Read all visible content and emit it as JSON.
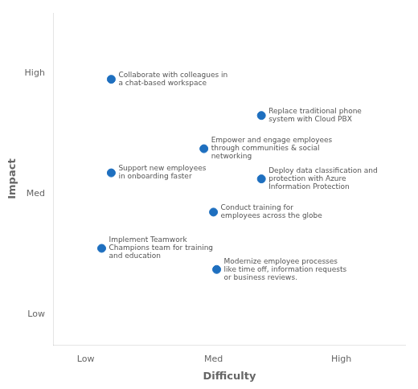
{
  "chart_data": {
    "type": "scatter",
    "x_label": "Difficulty",
    "y_label": "Impact",
    "color": "#1e6fbf",
    "xlim": [
      0,
      11
    ],
    "ylim": [
      0,
      11
    ],
    "xticks": [
      {
        "value": 1,
        "label": "Low"
      },
      {
        "value": 5,
        "label": "Med"
      },
      {
        "value": 9,
        "label": "High"
      }
    ],
    "yticks": [
      {
        "value": 1,
        "label": "Low"
      },
      {
        "value": 5,
        "label": "Med"
      },
      {
        "value": 9,
        "label": "High"
      }
    ],
    "grid": false,
    "x": [
      1.8,
      6.5,
      4.7,
      1.8,
      6.5,
      5.0,
      1.5,
      5.1
    ],
    "values": [
      8.8,
      7.6,
      6.5,
      5.7,
      5.5,
      4.4,
      3.2,
      2.5
    ],
    "labels": [
      "Collaborate with colleagues in\na chat-based workspace",
      "Replace traditional phone\nsystem with Cloud PBX",
      "Empower and engage employees\nthrough communities & social\nnetworking",
      "Support new employees\nin onboarding faster",
      "Deploy data classification and\nprotection with Azure\nInformation Protection",
      "Conduct training for\nemployees across the globe",
      "Implement Teamwork\nChampions team for training\nand education",
      "Modernize employee processes\nlike time off, information requests\nor business reviews."
    ]
  }
}
